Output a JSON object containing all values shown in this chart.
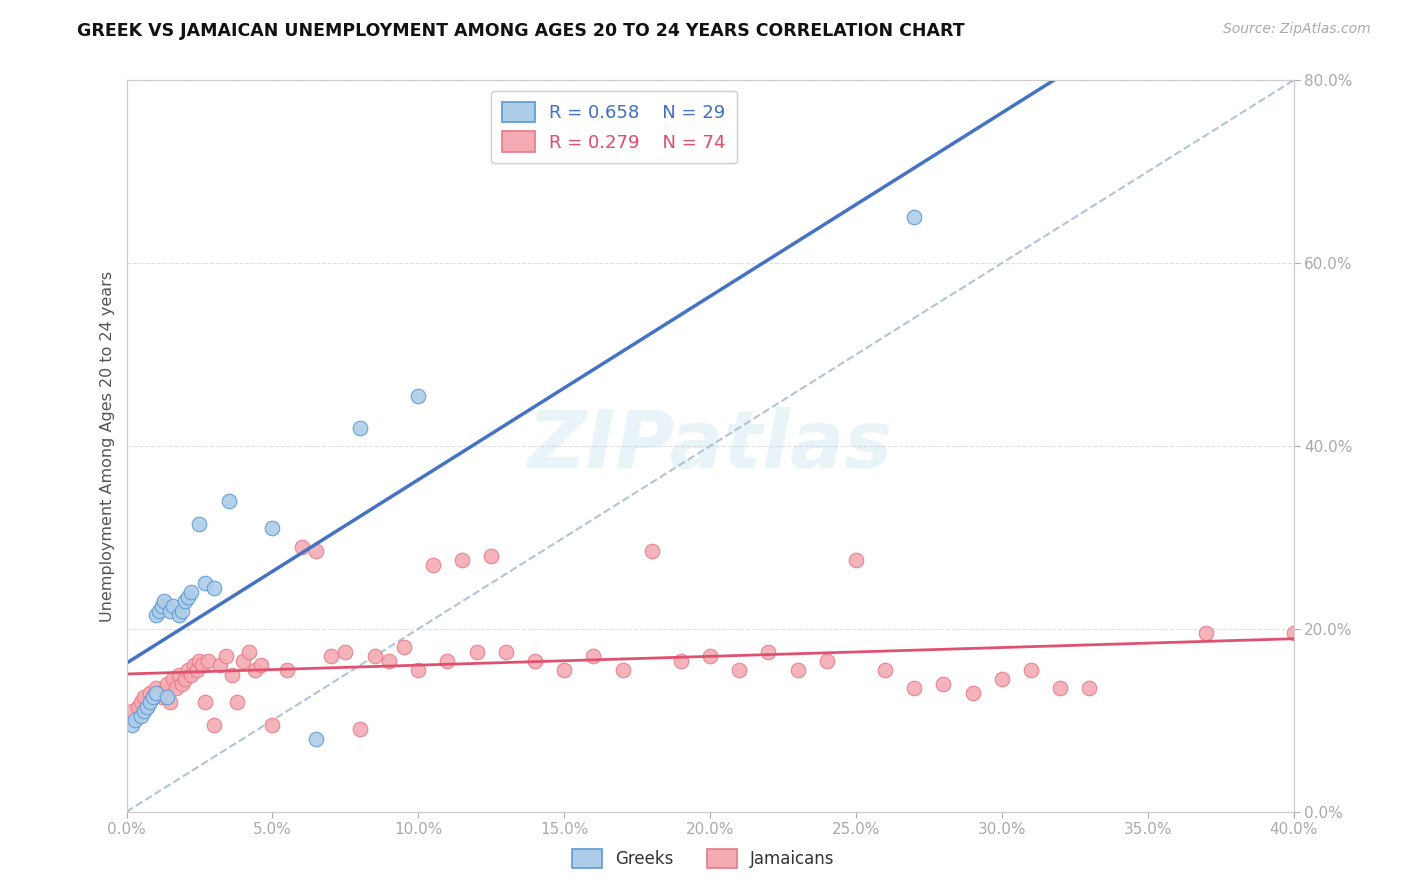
{
  "title": "GREEK VS JAMAICAN UNEMPLOYMENT AMONG AGES 20 TO 24 YEARS CORRELATION CHART",
  "source": "Source: ZipAtlas.com",
  "ylabel": "Unemployment Among Ages 20 to 24 years",
  "xlim": [
    0.0,
    0.4
  ],
  "ylim": [
    0.0,
    0.8
  ],
  "xtick_vals": [
    0.0,
    0.05,
    0.1,
    0.15,
    0.2,
    0.25,
    0.3,
    0.35,
    0.4
  ],
  "ytick_right_vals": [
    0.0,
    0.2,
    0.4,
    0.6,
    0.8
  ],
  "greek_R": 0.658,
  "greek_N": 29,
  "jamaican_R": 0.279,
  "jamaican_N": 74,
  "greek_face_color": "#aecde8",
  "greek_edge_color": "#5b9bd5",
  "jamaican_face_color": "#f4abb4",
  "jamaican_edge_color": "#e87a87",
  "greek_line_color": "#4472c4",
  "jamaican_line_color": "#e05070",
  "ref_line_color": "#b0c4d8",
  "grid_color": "#e0e0e0",
  "background_color": "#ffffff",
  "watermark": "ZIPatlas",
  "greek_x": [
    0.002,
    0.003,
    0.005,
    0.006,
    0.007,
    0.008,
    0.009,
    0.01,
    0.01,
    0.011,
    0.012,
    0.013,
    0.014,
    0.015,
    0.016,
    0.018,
    0.019,
    0.02,
    0.021,
    0.022,
    0.025,
    0.027,
    0.03,
    0.035,
    0.05,
    0.065,
    0.08,
    0.1,
    0.27
  ],
  "greek_y": [
    0.095,
    0.1,
    0.105,
    0.11,
    0.115,
    0.12,
    0.125,
    0.13,
    0.215,
    0.22,
    0.225,
    0.23,
    0.125,
    0.22,
    0.225,
    0.215,
    0.22,
    0.23,
    0.235,
    0.24,
    0.315,
    0.25,
    0.245,
    0.34,
    0.31,
    0.08,
    0.42,
    0.455,
    0.65
  ],
  "jamaican_x": [
    0.002,
    0.004,
    0.005,
    0.006,
    0.007,
    0.008,
    0.009,
    0.01,
    0.011,
    0.012,
    0.013,
    0.014,
    0.015,
    0.016,
    0.017,
    0.018,
    0.019,
    0.02,
    0.021,
    0.022,
    0.023,
    0.024,
    0.025,
    0.026,
    0.027,
    0.028,
    0.03,
    0.032,
    0.034,
    0.036,
    0.038,
    0.04,
    0.042,
    0.044,
    0.046,
    0.05,
    0.055,
    0.06,
    0.065,
    0.07,
    0.075,
    0.08,
    0.085,
    0.09,
    0.095,
    0.1,
    0.105,
    0.11,
    0.115,
    0.12,
    0.125,
    0.13,
    0.14,
    0.15,
    0.16,
    0.17,
    0.18,
    0.19,
    0.2,
    0.21,
    0.22,
    0.23,
    0.24,
    0.25,
    0.26,
    0.27,
    0.28,
    0.29,
    0.3,
    0.31,
    0.32,
    0.33,
    0.37,
    0.4
  ],
  "jamaican_y": [
    0.11,
    0.115,
    0.12,
    0.125,
    0.115,
    0.13,
    0.125,
    0.135,
    0.13,
    0.125,
    0.13,
    0.14,
    0.12,
    0.145,
    0.135,
    0.15,
    0.14,
    0.145,
    0.155,
    0.15,
    0.16,
    0.155,
    0.165,
    0.16,
    0.12,
    0.165,
    0.095,
    0.16,
    0.17,
    0.15,
    0.12,
    0.165,
    0.175,
    0.155,
    0.16,
    0.095,
    0.155,
    0.29,
    0.285,
    0.17,
    0.175,
    0.09,
    0.17,
    0.165,
    0.18,
    0.155,
    0.27,
    0.165,
    0.275,
    0.175,
    0.28,
    0.175,
    0.165,
    0.155,
    0.17,
    0.155,
    0.285,
    0.165,
    0.17,
    0.155,
    0.175,
    0.155,
    0.165,
    0.275,
    0.155,
    0.135,
    0.14,
    0.13,
    0.145,
    0.155,
    0.135,
    0.135,
    0.195,
    0.195
  ]
}
